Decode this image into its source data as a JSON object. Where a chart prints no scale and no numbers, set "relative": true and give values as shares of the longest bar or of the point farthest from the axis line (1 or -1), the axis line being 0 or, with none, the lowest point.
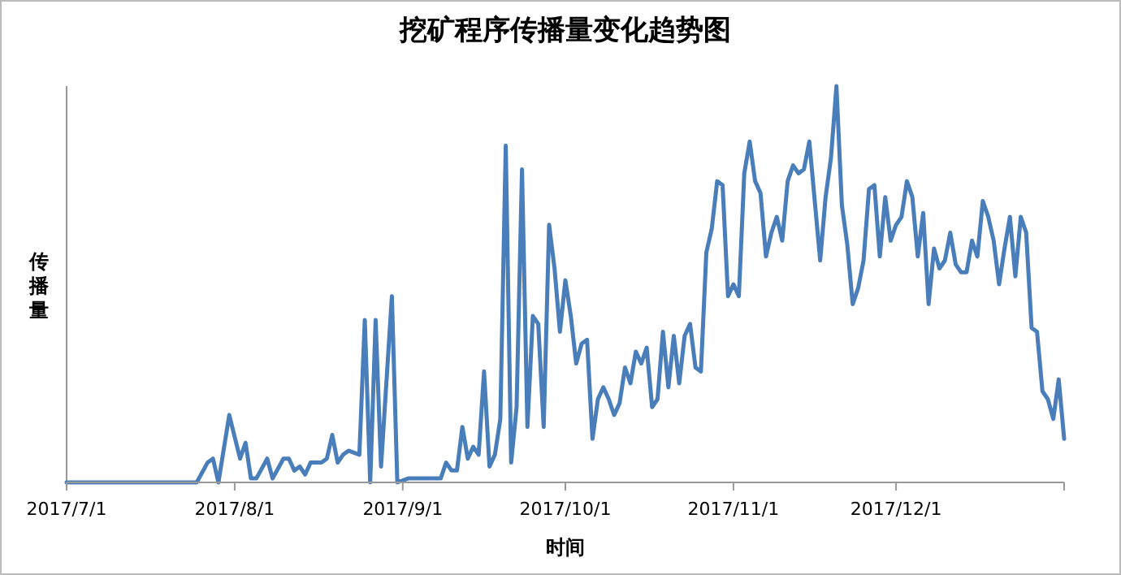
{
  "chart_data": {
    "type": "line",
    "title": "挖矿程序传播量变化趋势图",
    "xlabel": "时间",
    "ylabel": "传播量",
    "relative": true,
    "marker": "none",
    "line_style": "solid",
    "xlim": [
      "2017-07-01",
      "2018-01-01"
    ],
    "xticks": [
      {
        "value": "2017-07-01",
        "label": "2017/7/1"
      },
      {
        "value": "2017-08-01",
        "label": "2017/8/1"
      },
      {
        "value": "2017-09-01",
        "label": "2017/9/1"
      },
      {
        "value": "2017-10-01",
        "label": "2017/10/1"
      },
      {
        "value": "2017-11-01",
        "label": "2017/11/1"
      },
      {
        "value": "2017-12-01",
        "label": "2017/12/1"
      },
      {
        "value": "2018-01-01",
        "label": null
      }
    ],
    "x": [
      "2017-07-01",
      "2017-07-25",
      "2017-07-27",
      "2017-07-28",
      "2017-07-29",
      "2017-07-31",
      "2017-08-02",
      "2017-08-03",
      "2017-08-04",
      "2017-08-05",
      "2017-08-07",
      "2017-08-08",
      "2017-08-10",
      "2017-08-11",
      "2017-08-12",
      "2017-08-13",
      "2017-08-14",
      "2017-08-15",
      "2017-08-17",
      "2017-08-18",
      "2017-08-19",
      "2017-08-20",
      "2017-08-21",
      "2017-08-22",
      "2017-08-24",
      "2017-08-25",
      "2017-08-26",
      "2017-08-27",
      "2017-08-28",
      "2017-08-30",
      "2017-08-31",
      "2017-09-02",
      "2017-09-05",
      "2017-09-07",
      "2017-09-08",
      "2017-09-09",
      "2017-09-10",
      "2017-09-11",
      "2017-09-12",
      "2017-09-13",
      "2017-09-14",
      "2017-09-15",
      "2017-09-16",
      "2017-09-17",
      "2017-09-18",
      "2017-09-19",
      "2017-09-20",
      "2017-09-21",
      "2017-09-22",
      "2017-09-23",
      "2017-09-24",
      "2017-09-25",
      "2017-09-26",
      "2017-09-27",
      "2017-09-28",
      "2017-09-29",
      "2017-09-30",
      "2017-10-01",
      "2017-10-02",
      "2017-10-03",
      "2017-10-04",
      "2017-10-05",
      "2017-10-06",
      "2017-10-07",
      "2017-10-08",
      "2017-10-09",
      "2017-10-10",
      "2017-10-11",
      "2017-10-12",
      "2017-10-13",
      "2017-10-14",
      "2017-10-15",
      "2017-10-16",
      "2017-10-17",
      "2017-10-18",
      "2017-10-19",
      "2017-10-20",
      "2017-10-21",
      "2017-10-22",
      "2017-10-23",
      "2017-10-24",
      "2017-10-25",
      "2017-10-26",
      "2017-10-27",
      "2017-10-28",
      "2017-10-29",
      "2017-10-30",
      "2017-10-31",
      "2017-11-01",
      "2017-11-02",
      "2017-11-03",
      "2017-11-04",
      "2017-11-05",
      "2017-11-06",
      "2017-11-07",
      "2017-11-08",
      "2017-11-09",
      "2017-11-10",
      "2017-11-11",
      "2017-11-12",
      "2017-11-13",
      "2017-11-14",
      "2017-11-15",
      "2017-11-16",
      "2017-11-17",
      "2017-11-18",
      "2017-11-19",
      "2017-11-20",
      "2017-11-21",
      "2017-11-22",
      "2017-11-23",
      "2017-11-24",
      "2017-11-25",
      "2017-11-26",
      "2017-11-27",
      "2017-11-28",
      "2017-11-29",
      "2017-11-30",
      "2017-12-01",
      "2017-12-02",
      "2017-12-03",
      "2017-12-04",
      "2017-12-05",
      "2017-12-06",
      "2017-12-07",
      "2017-12-08",
      "2017-12-09",
      "2017-12-10",
      "2017-12-11",
      "2017-12-12",
      "2017-12-13",
      "2017-12-14",
      "2017-12-15",
      "2017-12-16",
      "2017-12-17",
      "2017-12-18",
      "2017-12-19",
      "2017-12-20",
      "2017-12-21",
      "2017-12-22",
      "2017-12-23",
      "2017-12-24",
      "2017-12-25",
      "2017-12-26",
      "2017-12-27",
      "2017-12-28",
      "2017-12-29",
      "2017-12-30",
      "2017-12-31",
      "2018-01-01"
    ],
    "series": [
      {
        "color": "#4a7ebb",
        "values": [
          0,
          0,
          0.05,
          0.06,
          0,
          0.17,
          0.06,
          0.1,
          0.01,
          0.01,
          0.06,
          0.01,
          0.06,
          0.06,
          0.03,
          0.04,
          0.02,
          0.05,
          0.05,
          0.06,
          0.12,
          0.05,
          0.07,
          0.08,
          0.07,
          0.41,
          0,
          0.41,
          0.04,
          0.47,
          0,
          0.01,
          0.01,
          0.01,
          0.01,
          0.05,
          0.03,
          0.03,
          0.14,
          0.06,
          0.09,
          0.07,
          0.28,
          0.04,
          0.07,
          0.16,
          0.85,
          0.05,
          0.19,
          0.79,
          0.14,
          0.42,
          0.4,
          0.14,
          0.65,
          0.54,
          0.38,
          0.51,
          0.42,
          0.3,
          0.35,
          0.36,
          0.11,
          0.21,
          0.24,
          0.21,
          0.17,
          0.2,
          0.29,
          0.25,
          0.33,
          0.3,
          0.34,
          0.19,
          0.21,
          0.38,
          0.24,
          0.37,
          0.25,
          0.37,
          0.4,
          0.29,
          0.28,
          0.58,
          0.64,
          0.76,
          0.75,
          0.47,
          0.5,
          0.47,
          0.78,
          0.86,
          0.76,
          0.73,
          0.57,
          0.63,
          0.67,
          0.61,
          0.76,
          0.8,
          0.78,
          0.79,
          0.86,
          0.71,
          0.56,
          0.72,
          0.82,
          1,
          0.7,
          0.6,
          0.45,
          0.49,
          0.56,
          0.74,
          0.75,
          0.57,
          0.72,
          0.61,
          0.65,
          0.67,
          0.76,
          0.72,
          0.57,
          0.68,
          0.45,
          0.59,
          0.54,
          0.56,
          0.63,
          0.55,
          0.53,
          0.53,
          0.61,
          0.57,
          0.71,
          0.67,
          0.61,
          0.5,
          0.59,
          0.67,
          0.52,
          0.67,
          0.63,
          0.39,
          0.38,
          0.23,
          0.21,
          0.16,
          0.26,
          0.11
        ]
      }
    ]
  }
}
